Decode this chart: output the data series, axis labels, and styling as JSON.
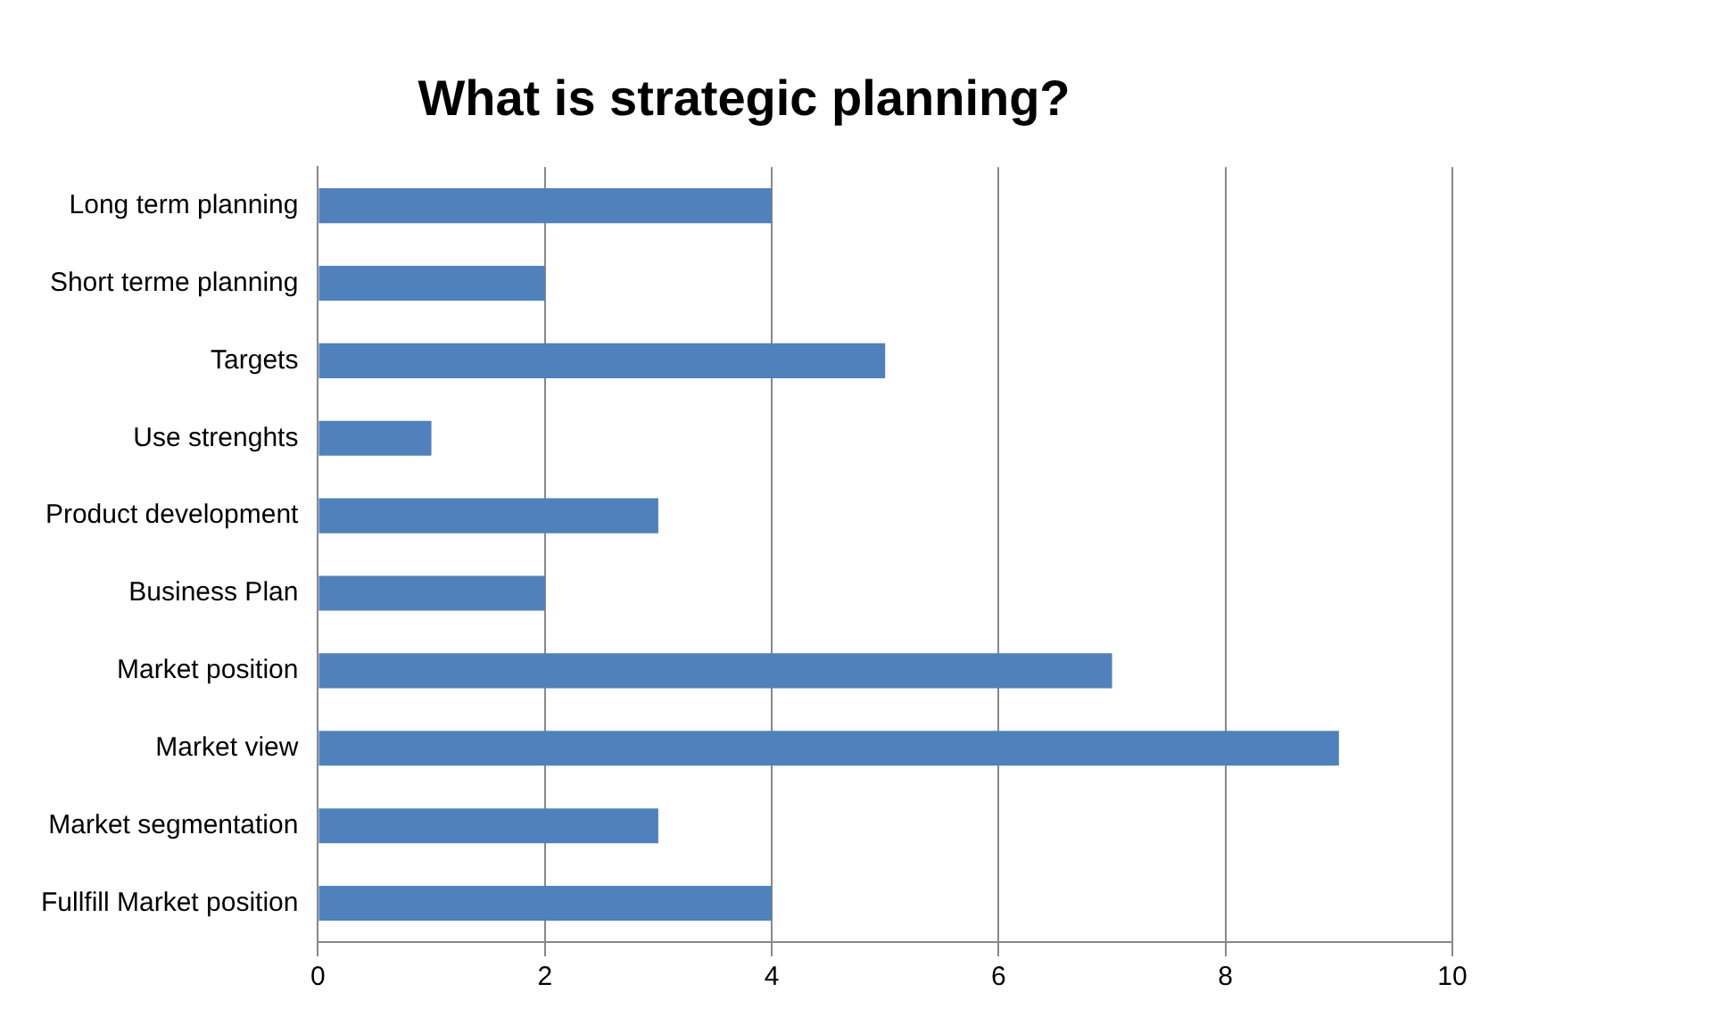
{
  "chart_data": {
    "type": "bar",
    "title": "What is strategic planning?",
    "orientation": "horizontal",
    "categories": [
      "Long term planning",
      "Short terme planning",
      "Targets",
      "Use strenghts",
      "Product development",
      "Business Plan",
      "Market position",
      "Market view",
      "Market segmentation",
      "Fullfill Market position"
    ],
    "values": [
      4,
      2,
      5,
      1,
      3,
      2,
      7,
      9,
      3,
      4
    ],
    "color": "#4f81bd",
    "xlim": [
      0,
      10
    ],
    "xticks": [
      0,
      2,
      4,
      6,
      8,
      10
    ],
    "grid": "x",
    "legend": false
  }
}
